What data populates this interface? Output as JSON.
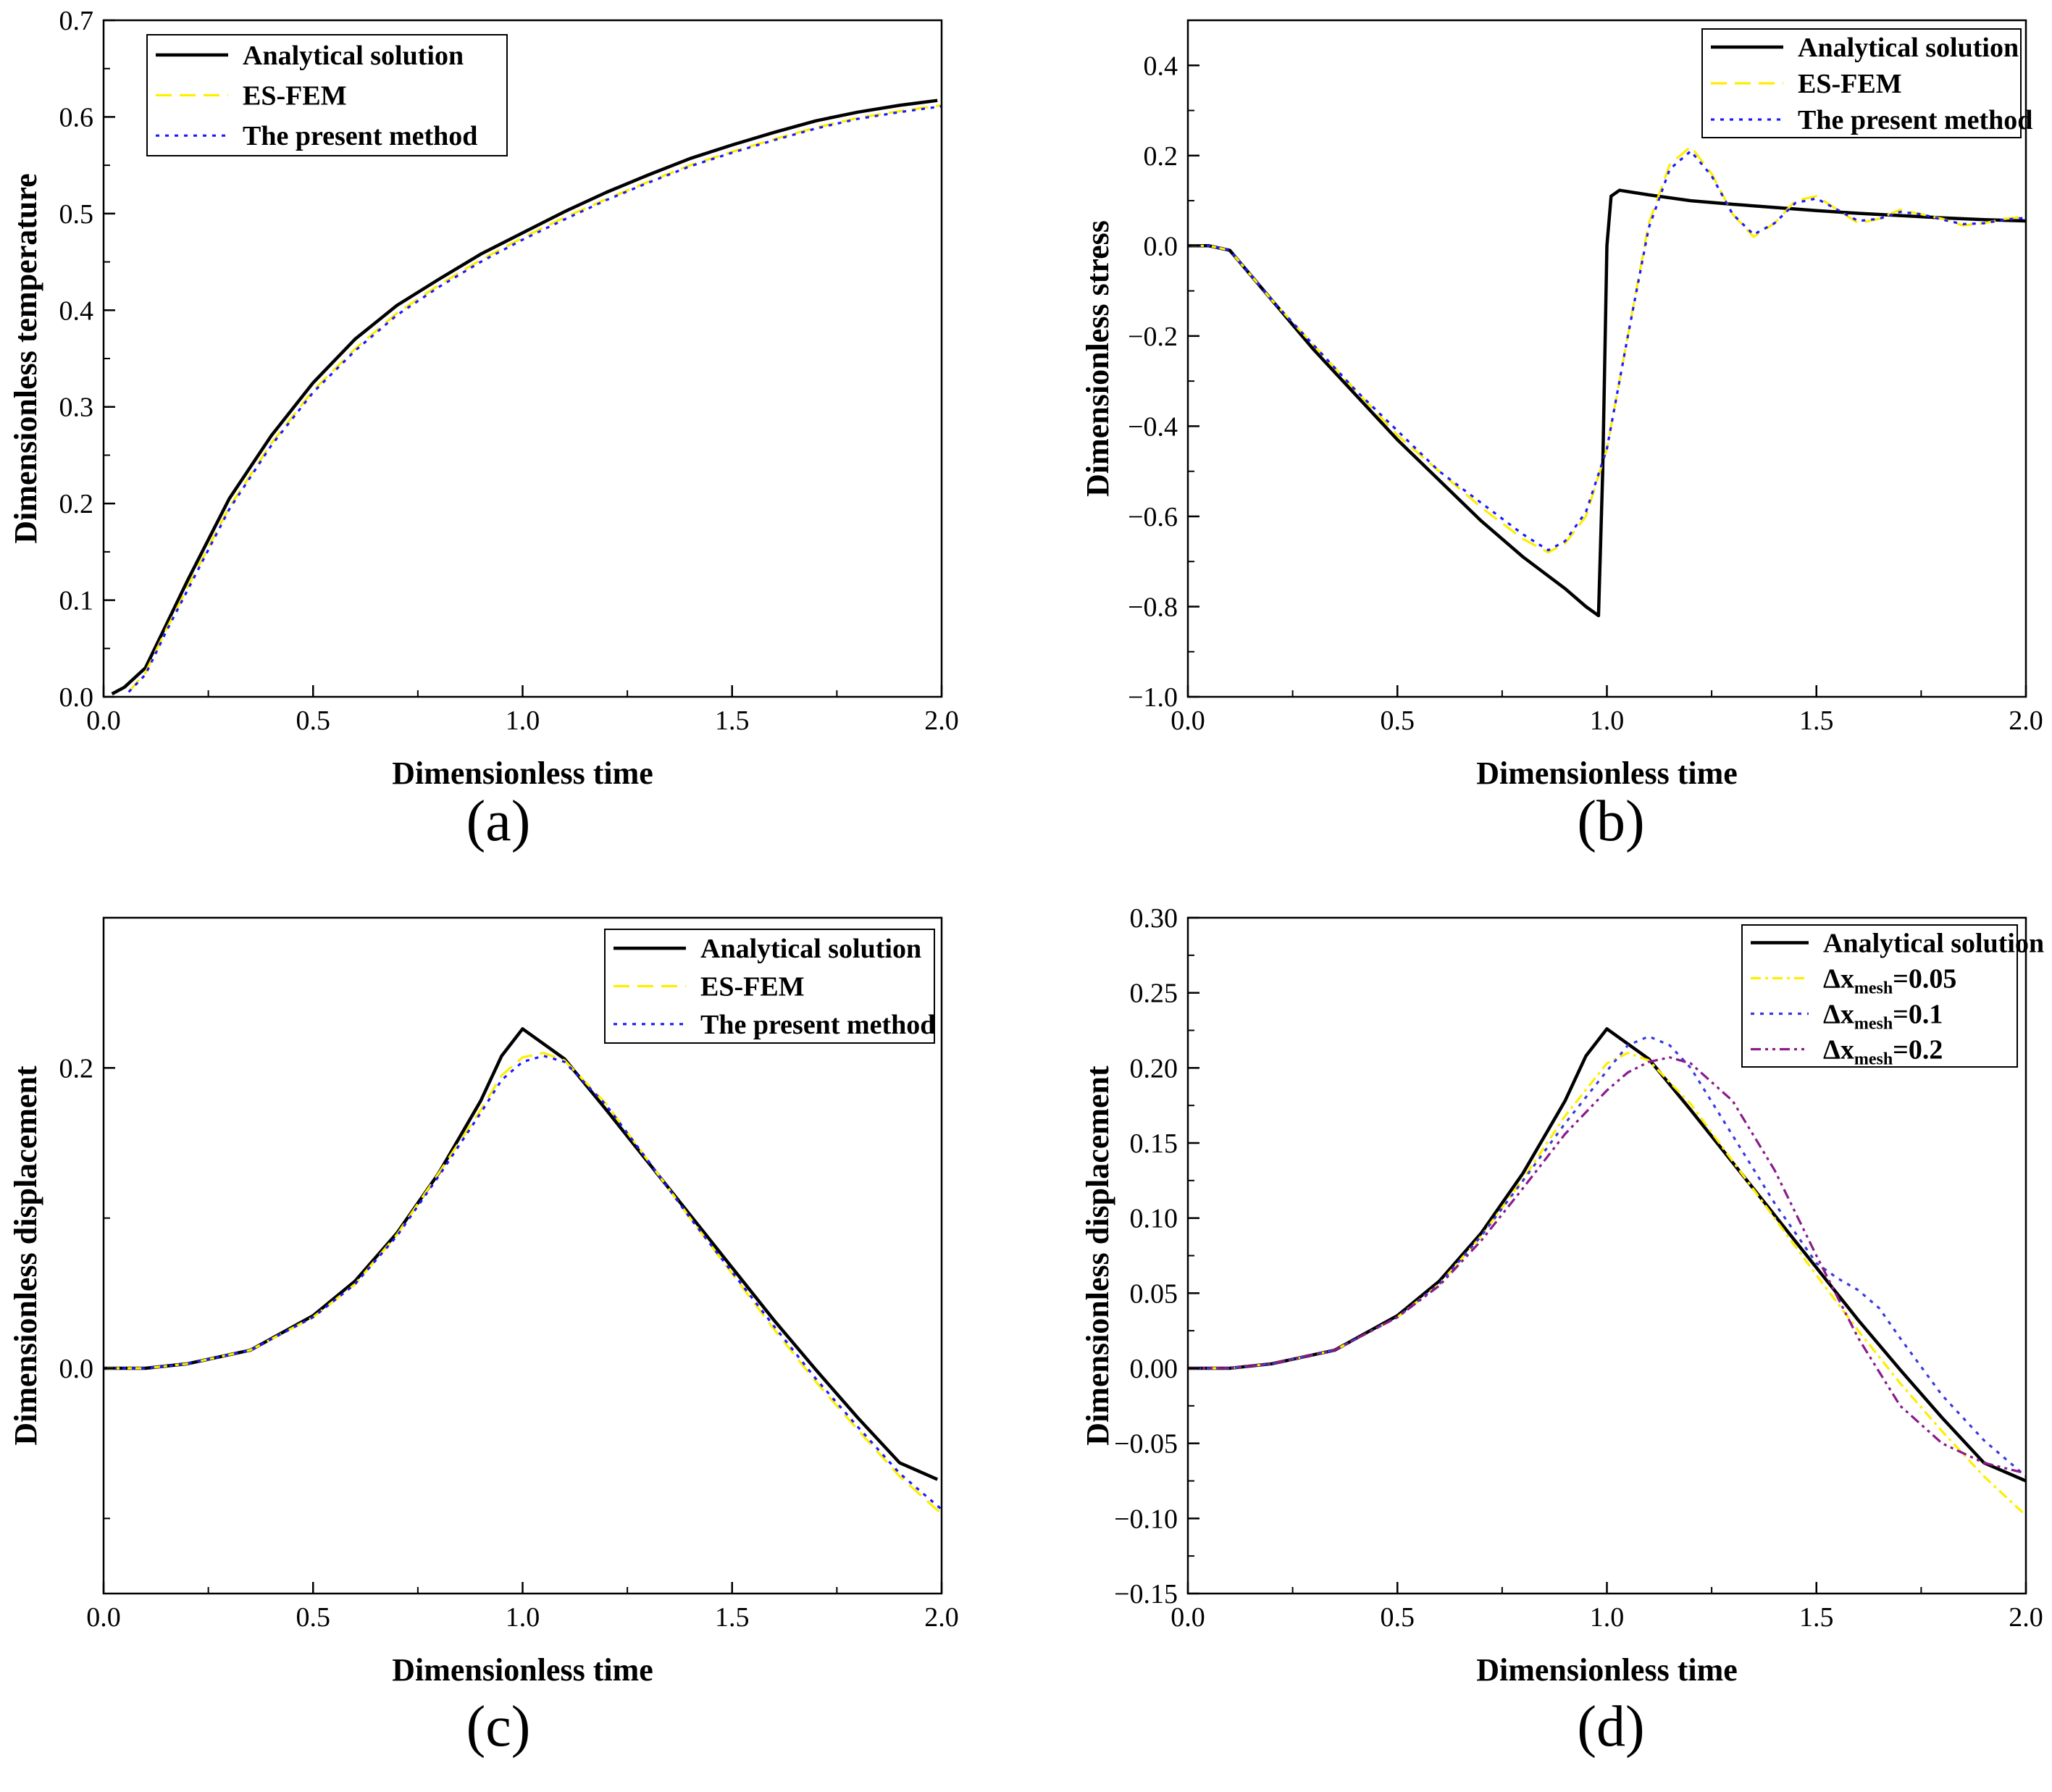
{
  "chart_data": [
    {
      "id": "a",
      "panel_label": "(a)",
      "type": "line",
      "xlabel": "Dimensionless time",
      "ylabel": "Dimensionless temperature",
      "xlim": [
        0,
        2
      ],
      "ylim": [
        0,
        0.7
      ],
      "xticks": [
        0,
        0.5,
        1,
        1.5,
        2
      ],
      "xtick_labels": [
        "0.0",
        "0.5",
        "1.0",
        "1.5",
        "2.0"
      ],
      "yticks": [
        0,
        0.1,
        0.2,
        0.3,
        0.4,
        0.5,
        0.6,
        0.7
      ],
      "ytick_labels": [
        "0.0",
        "0.1",
        "0.2",
        "0.3",
        "0.4",
        "0.5",
        "0.6",
        "0.7"
      ],
      "legend_position": "top-left",
      "series": [
        {
          "name": "Analytical solution",
          "color": "#000000",
          "style": "solid",
          "x": [
            0.02,
            0.05,
            0.1,
            0.15,
            0.2,
            0.3,
            0.4,
            0.5,
            0.6,
            0.7,
            0.8,
            0.9,
            1.0,
            1.1,
            1.2,
            1.3,
            1.4,
            1.5,
            1.6,
            1.7,
            1.8,
            1.9,
            1.99
          ],
          "y": [
            0.003,
            0.01,
            0.03,
            0.075,
            0.12,
            0.205,
            0.27,
            0.325,
            0.37,
            0.405,
            0.432,
            0.458,
            0.48,
            0.502,
            0.522,
            0.54,
            0.557,
            0.571,
            0.584,
            0.596,
            0.605,
            0.612,
            0.617
          ]
        },
        {
          "name": "ES-FEM",
          "color": "#ffee00",
          "style": "dashed",
          "x": [
            0.06,
            0.1,
            0.15,
            0.2,
            0.3,
            0.4,
            0.5,
            0.6,
            0.7,
            0.8,
            0.9,
            1.0,
            1.1,
            1.2,
            1.3,
            1.4,
            1.5,
            1.6,
            1.7,
            1.8,
            1.9,
            2.0
          ],
          "y": [
            0.005,
            0.025,
            0.07,
            0.113,
            0.196,
            0.262,
            0.317,
            0.36,
            0.397,
            0.426,
            0.452,
            0.475,
            0.496,
            0.515,
            0.533,
            0.55,
            0.564,
            0.577,
            0.589,
            0.599,
            0.606,
            0.612
          ]
        },
        {
          "name": "The present method",
          "color": "#1a1aff",
          "style": "dotted",
          "x": [
            0.06,
            0.1,
            0.15,
            0.2,
            0.3,
            0.4,
            0.5,
            0.6,
            0.7,
            0.8,
            0.9,
            1.0,
            1.1,
            1.2,
            1.3,
            1.4,
            1.5,
            1.6,
            1.7,
            1.8,
            1.9,
            2.0
          ],
          "y": [
            0.005,
            0.023,
            0.068,
            0.11,
            0.194,
            0.26,
            0.315,
            0.358,
            0.395,
            0.424,
            0.45,
            0.473,
            0.494,
            0.514,
            0.532,
            0.549,
            0.563,
            0.576,
            0.588,
            0.598,
            0.605,
            0.611
          ]
        }
      ]
    },
    {
      "id": "b",
      "panel_label": "(b)",
      "type": "line",
      "xlabel": "Dimensionless time",
      "ylabel": "Dimensionless stress",
      "xlim": [
        0,
        2
      ],
      "ylim": [
        -1.0,
        0.5
      ],
      "xticks": [
        0,
        0.5,
        1,
        1.5,
        2
      ],
      "xtick_labels": [
        "0.0",
        "0.5",
        "1.0",
        "1.5",
        "2.0"
      ],
      "yticks": [
        -1.0,
        -0.8,
        -0.6,
        -0.4,
        -0.2,
        0,
        0.2,
        0.4
      ],
      "ytick_labels": [
        "−1.0",
        "−0.8",
        "−0.6",
        "−0.4",
        "−0.2",
        "0.0",
        "0.2",
        "0.4"
      ],
      "legend_position": "top-right",
      "series": [
        {
          "name": "Analytical solution",
          "color": "#000000",
          "style": "solid",
          "x": [
            0,
            0.05,
            0.1,
            0.2,
            0.3,
            0.4,
            0.5,
            0.6,
            0.7,
            0.8,
            0.9,
            0.95,
            0.98,
            0.99,
            1.0,
            1.01,
            1.03,
            1.1,
            1.2,
            1.3,
            1.4,
            1.5,
            1.6,
            1.7,
            1.8,
            1.9,
            2.0
          ],
          "y": [
            0,
            0,
            -0.01,
            -0.12,
            -0.23,
            -0.33,
            -0.43,
            -0.52,
            -0.61,
            -0.69,
            -0.76,
            -0.8,
            -0.82,
            -0.5,
            0,
            0.11,
            0.123,
            0.113,
            0.1,
            0.092,
            0.085,
            0.078,
            0.072,
            0.067,
            0.062,
            0.058,
            0.055
          ]
        },
        {
          "name": "ES-FEM",
          "color": "#ffee00",
          "style": "dashed",
          "x": [
            0,
            0.05,
            0.1,
            0.2,
            0.3,
            0.4,
            0.5,
            0.6,
            0.7,
            0.8,
            0.86,
            0.9,
            0.95,
            1.0,
            1.05,
            1.1,
            1.15,
            1.2,
            1.25,
            1.3,
            1.35,
            1.4,
            1.45,
            1.5,
            1.55,
            1.6,
            1.65,
            1.7,
            1.75,
            1.8,
            1.85,
            1.9,
            1.95,
            2.0
          ],
          "y": [
            0,
            0,
            -0.01,
            -0.12,
            -0.22,
            -0.32,
            -0.42,
            -0.5,
            -0.58,
            -0.65,
            -0.68,
            -0.66,
            -0.6,
            -0.45,
            -0.2,
            0.05,
            0.18,
            0.22,
            0.16,
            0.07,
            0.02,
            0.05,
            0.1,
            0.11,
            0.08,
            0.05,
            0.06,
            0.08,
            0.07,
            0.06,
            0.045,
            0.05,
            0.06,
            0.065
          ]
        },
        {
          "name": "The present method",
          "color": "#1a1aff",
          "style": "dotted",
          "x": [
            0,
            0.05,
            0.1,
            0.2,
            0.3,
            0.4,
            0.5,
            0.6,
            0.7,
            0.8,
            0.86,
            0.9,
            0.95,
            1.0,
            1.05,
            1.1,
            1.15,
            1.2,
            1.25,
            1.3,
            1.35,
            1.4,
            1.45,
            1.5,
            1.55,
            1.6,
            1.65,
            1.7,
            1.75,
            1.8,
            1.85,
            1.9,
            1.95,
            2.0
          ],
          "y": [
            0,
            0,
            -0.01,
            -0.12,
            -0.22,
            -0.32,
            -0.41,
            -0.5,
            -0.57,
            -0.64,
            -0.675,
            -0.655,
            -0.59,
            -0.45,
            -0.2,
            0.04,
            0.17,
            0.21,
            0.155,
            0.07,
            0.025,
            0.05,
            0.095,
            0.105,
            0.08,
            0.055,
            0.06,
            0.075,
            0.07,
            0.058,
            0.048,
            0.05,
            0.058,
            0.062
          ]
        }
      ]
    },
    {
      "id": "c",
      "panel_label": "(c)",
      "type": "line",
      "xlabel": "Dimensionless time",
      "ylabel": "Dimensionless displacement",
      "xlim": [
        0,
        2
      ],
      "ylim": [
        -0.15,
        0.3
      ],
      "xticks": [
        0,
        0.5,
        1,
        1.5,
        2
      ],
      "xtick_labels": [
        "0.0",
        "0.5",
        "1.0",
        "1.5",
        "2.0"
      ],
      "yticks": [
        0,
        0.2
      ],
      "ytick_labels": [
        "0.0",
        "0.2"
      ],
      "legend_position": "top-right",
      "series": [
        {
          "name": "Analytical solution",
          "color": "#000000",
          "style": "solid",
          "x": [
            0,
            0.1,
            0.2,
            0.35,
            0.5,
            0.6,
            0.7,
            0.8,
            0.9,
            0.95,
            1.0,
            1.1,
            1.2,
            1.3,
            1.4,
            1.5,
            1.6,
            1.7,
            1.8,
            1.9,
            1.99
          ],
          "y": [
            0,
            0,
            0.003,
            0.012,
            0.035,
            0.058,
            0.09,
            0.13,
            0.178,
            0.208,
            0.226,
            0.206,
            0.172,
            0.137,
            0.102,
            0.067,
            0.032,
            -0.001,
            -0.033,
            -0.063,
            -0.074
          ]
        },
        {
          "name": "ES-FEM",
          "color": "#ffee00",
          "style": "dashed",
          "x": [
            0,
            0.1,
            0.2,
            0.35,
            0.5,
            0.6,
            0.7,
            0.8,
            0.9,
            0.95,
            1.0,
            1.05,
            1.1,
            1.2,
            1.3,
            1.4,
            1.5,
            1.6,
            1.7,
            1.8,
            1.9,
            2.0
          ],
          "y": [
            0,
            0,
            0.003,
            0.012,
            0.034,
            0.056,
            0.089,
            0.13,
            0.172,
            0.195,
            0.207,
            0.21,
            0.205,
            0.176,
            0.138,
            0.1,
            0.063,
            0.026,
            -0.009,
            -0.041,
            -0.072,
            -0.097
          ]
        },
        {
          "name": "The present method",
          "color": "#1a1aff",
          "style": "dotted",
          "x": [
            0,
            0.1,
            0.2,
            0.35,
            0.5,
            0.6,
            0.7,
            0.8,
            0.9,
            0.95,
            1.0,
            1.05,
            1.1,
            1.2,
            1.3,
            1.4,
            1.5,
            1.6,
            1.7,
            1.8,
            1.9,
            2.0
          ],
          "y": [
            0,
            0,
            0.003,
            0.012,
            0.034,
            0.056,
            0.088,
            0.128,
            0.17,
            0.192,
            0.204,
            0.208,
            0.204,
            0.175,
            0.138,
            0.1,
            0.064,
            0.028,
            -0.007,
            -0.039,
            -0.07,
            -0.094
          ]
        }
      ]
    },
    {
      "id": "d",
      "panel_label": "(d)",
      "type": "line",
      "xlabel": "Dimensionless time",
      "ylabel": "Dimensionless displacement",
      "xlim": [
        0,
        2
      ],
      "ylim": [
        -0.15,
        0.3
      ],
      "xticks": [
        0,
        0.5,
        1,
        1.5,
        2
      ],
      "xtick_labels": [
        "0.0",
        "0.5",
        "1.0",
        "1.5",
        "2.0"
      ],
      "yticks": [
        -0.15,
        -0.1,
        -0.05,
        0,
        0.05,
        0.1,
        0.15,
        0.2,
        0.25,
        0.3
      ],
      "ytick_labels": [
        "−0.15",
        "−0.10",
        "−0.05",
        "0.00",
        "0.05",
        "0.10",
        "0.15",
        "0.20",
        "0.25",
        "0.30"
      ],
      "legend_position": "top-right",
      "series": [
        {
          "name": "Analytical solution",
          "label_main": "Analytical solution",
          "color": "#000000",
          "style": "solid",
          "x": [
            0,
            0.1,
            0.2,
            0.35,
            0.5,
            0.6,
            0.7,
            0.8,
            0.9,
            0.95,
            1.0,
            1.1,
            1.2,
            1.3,
            1.4,
            1.5,
            1.6,
            1.7,
            1.8,
            1.9,
            2.0
          ],
          "y": [
            0,
            0,
            0.003,
            0.012,
            0.035,
            0.058,
            0.09,
            0.13,
            0.178,
            0.208,
            0.226,
            0.206,
            0.172,
            0.137,
            0.102,
            0.067,
            0.032,
            -0.001,
            -0.033,
            -0.063,
            -0.075
          ]
        },
        {
          "name": "Δxmesh=0.05",
          "label_main": "Δx",
          "label_sub": "mesh",
          "label_tail": "=0.05",
          "color": "#ffee00",
          "style": "dashdot",
          "x": [
            0,
            0.1,
            0.2,
            0.35,
            0.5,
            0.6,
            0.7,
            0.8,
            0.9,
            1.0,
            1.05,
            1.1,
            1.2,
            1.3,
            1.4,
            1.5,
            1.6,
            1.7,
            1.8,
            1.9,
            2.0
          ],
          "y": [
            0,
            0,
            0.003,
            0.012,
            0.034,
            0.056,
            0.088,
            0.126,
            0.168,
            0.203,
            0.21,
            0.205,
            0.176,
            0.138,
            0.1,
            0.062,
            0.025,
            -0.01,
            -0.042,
            -0.072,
            -0.098
          ]
        },
        {
          "name": "Δxmesh=0.1",
          "label_main": "Δx",
          "label_sub": "mesh",
          "label_tail": "=0.1",
          "color": "#3a3ae0",
          "style": "dotted",
          "x": [
            0,
            0.1,
            0.2,
            0.35,
            0.5,
            0.6,
            0.7,
            0.8,
            0.9,
            1.0,
            1.05,
            1.1,
            1.15,
            1.2,
            1.3,
            1.4,
            1.5,
            1.55,
            1.6,
            1.65,
            1.7,
            1.8,
            1.9,
            2.0
          ],
          "y": [
            0,
            0,
            0.003,
            0.012,
            0.034,
            0.056,
            0.088,
            0.125,
            0.163,
            0.198,
            0.215,
            0.221,
            0.215,
            0.2,
            0.155,
            0.11,
            0.07,
            0.06,
            0.052,
            0.04,
            0.02,
            -0.018,
            -0.048,
            -0.072
          ]
        },
        {
          "name": "Δxmesh=0.2",
          "label_main": "Δx",
          "label_sub": "mesh",
          "label_tail": "=0.2",
          "color": "#8b1a8b",
          "style": "dashdotdot",
          "x": [
            0,
            0.1,
            0.2,
            0.35,
            0.5,
            0.6,
            0.7,
            0.8,
            0.9,
            1.0,
            1.05,
            1.1,
            1.15,
            1.2,
            1.3,
            1.4,
            1.5,
            1.6,
            1.7,
            1.8,
            1.9,
            2.0
          ],
          "y": [
            0,
            0,
            0.003,
            0.012,
            0.034,
            0.055,
            0.085,
            0.12,
            0.156,
            0.185,
            0.197,
            0.204,
            0.207,
            0.203,
            0.178,
            0.132,
            0.075,
            0.02,
            -0.025,
            -0.05,
            -0.063,
            -0.07
          ]
        }
      ]
    }
  ]
}
